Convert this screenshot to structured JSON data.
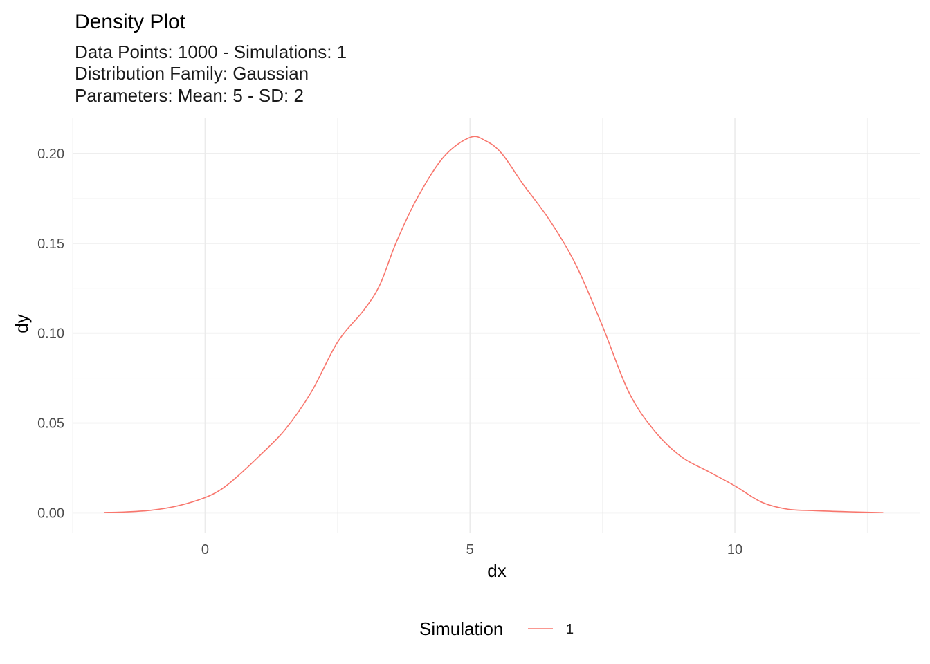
{
  "chart_data": {
    "type": "line",
    "title": "Density Plot",
    "subtitle_lines": [
      "Data Points: 1000 - Simulations: 1",
      "Distribution Family: Gaussian",
      "Parameters: Mean: 5 - SD: 2"
    ],
    "xlabel": "dx",
    "ylabel": "dy",
    "xlim": [
      -2.5,
      13.5
    ],
    "ylim": [
      -0.011,
      0.22
    ],
    "x_ticks": [
      0,
      5,
      10
    ],
    "x_tick_labels": [
      "0",
      "5",
      "10"
    ],
    "x_minor_ticks": [
      -2.5,
      2.5,
      7.5,
      12.5
    ],
    "y_ticks": [
      0.0,
      0.05,
      0.1,
      0.15,
      0.2
    ],
    "y_tick_labels": [
      "0.00",
      "0.05",
      "0.10",
      "0.15",
      "0.20"
    ],
    "y_minor_ticks": [
      0.025,
      0.075,
      0.125,
      0.175
    ],
    "grid": true,
    "legend": {
      "title": "Simulation",
      "position": "bottom",
      "entries": [
        "1"
      ]
    },
    "series": [
      {
        "name": "1",
        "color": "#F8766D",
        "x": [
          -1.9,
          -1.5,
          -1.0,
          -0.5,
          0.0,
          0.3,
          0.6,
          1.0,
          1.5,
          2.0,
          2.5,
          3.0,
          3.3,
          3.6,
          4.0,
          4.5,
          5.0,
          5.3,
          5.6,
          6.0,
          6.5,
          7.0,
          7.5,
          8.0,
          8.5,
          9.0,
          9.5,
          10.0,
          10.5,
          11.0,
          11.5,
          12.0,
          12.5,
          12.8
        ],
        "y": [
          0.0002,
          0.0005,
          0.0015,
          0.004,
          0.0085,
          0.013,
          0.02,
          0.031,
          0.046,
          0.067,
          0.095,
          0.113,
          0.127,
          0.15,
          0.175,
          0.198,
          0.209,
          0.207,
          0.2,
          0.183,
          0.163,
          0.138,
          0.104,
          0.067,
          0.045,
          0.031,
          0.023,
          0.015,
          0.006,
          0.002,
          0.0012,
          0.0007,
          0.0003,
          0.0001
        ]
      }
    ]
  }
}
